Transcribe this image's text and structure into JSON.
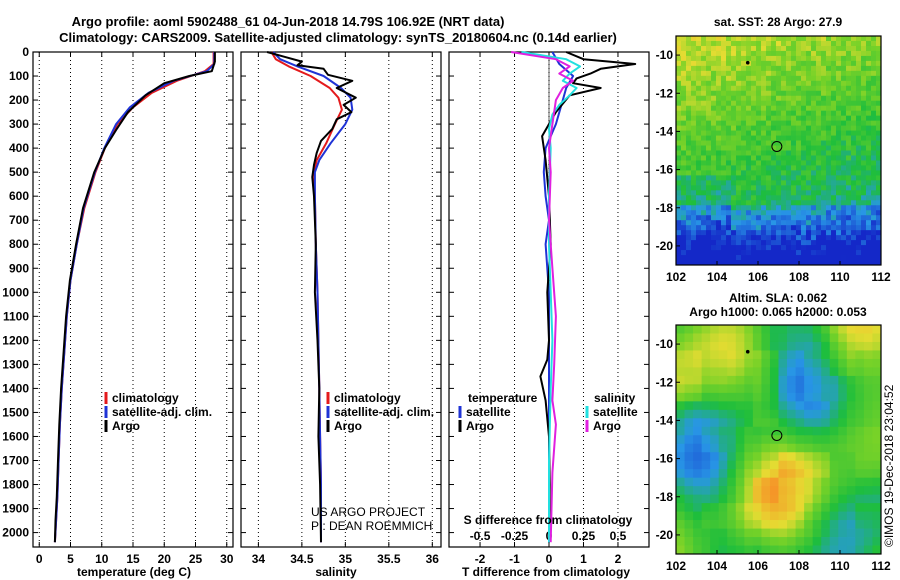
{
  "header": {
    "line1": "Argo profile: aoml 5902488_61 04-Jun-2018 14.79S 106.92E (NRT data)",
    "line2": "Climatology: CARS2009. Satellite-adjusted climatology: synTS_20180604.nc (0.14d earlier)"
  },
  "colors": {
    "climatology": "#e41a1c",
    "satellite": "#1f33d6",
    "argo": "#000000",
    "sat_salinity": "#22e0e0",
    "argo_salinity": "#e020e0"
  },
  "chart_data": [
    {
      "id": "temperature",
      "type": "line",
      "xlabel": "temperature (deg C)",
      "ylabel": "",
      "xlim": [
        -1,
        31
      ],
      "ylim": [
        2060,
        0
      ],
      "xticks": [
        0,
        5,
        10,
        15,
        20,
        25,
        30
      ],
      "yticks": [
        0,
        100,
        200,
        300,
        400,
        500,
        600,
        700,
        800,
        900,
        1000,
        1100,
        1200,
        1300,
        1400,
        1500,
        1600,
        1700,
        1800,
        1900,
        2000
      ],
      "legend": [
        "climatology",
        "satellite-adj. clim.",
        "Argo"
      ],
      "series": [
        {
          "name": "climatology",
          "x": [
            27.9,
            27.9,
            26.5,
            22,
            18,
            15,
            12.5,
            10.5,
            9,
            7.2,
            6,
            5,
            4.4,
            4,
            3.6,
            3.3,
            3.1,
            2.9,
            2.7,
            2.5
          ],
          "y": [
            0,
            50,
            80,
            120,
            170,
            230,
            300,
            400,
            500,
            650,
            800,
            950,
            1100,
            1250,
            1400,
            1550,
            1700,
            1850,
            1950,
            2040
          ]
        },
        {
          "name": "satellite-adj. clim.",
          "x": [
            28,
            28,
            26.8,
            21.5,
            17.5,
            14.5,
            12.3,
            10.4,
            8.9,
            7.1,
            6,
            5,
            4.4,
            4,
            3.6,
            3.3,
            3.1,
            2.9,
            2.7,
            2.5
          ],
          "y": [
            0,
            50,
            80,
            120,
            170,
            230,
            300,
            400,
            500,
            650,
            800,
            950,
            1100,
            1250,
            1400,
            1550,
            1700,
            1850,
            1950,
            2040
          ]
        },
        {
          "name": "Argo",
          "x": [
            28.1,
            28.1,
            27.6,
            24,
            20,
            17,
            14.2,
            12.4,
            10.5,
            8.8,
            7,
            5.9,
            4.9,
            4.3,
            3.9,
            3.5,
            3.2,
            3,
            2.8,
            2.6,
            2.5
          ],
          "y": [
            0,
            40,
            80,
            100,
            130,
            180,
            250,
            320,
            400,
            500,
            650,
            800,
            950,
            1100,
            1250,
            1400,
            1550,
            1700,
            1850,
            1950,
            2040
          ]
        }
      ]
    },
    {
      "id": "salinity",
      "type": "line",
      "xlabel": "salinity",
      "xlim": [
        33.8,
        36.1
      ],
      "ylim": [
        2060,
        0
      ],
      "xticks": [
        34,
        34.5,
        35,
        35.5,
        36
      ],
      "legend": [
        "climatology",
        "satellite-adj. clim.",
        "Argo"
      ],
      "series": [
        {
          "name": "climatology",
          "x": [
            34.15,
            34.2,
            34.35,
            34.6,
            34.82,
            34.92,
            34.96,
            34.88,
            34.78,
            34.67,
            34.64,
            34.65,
            34.66,
            34.68,
            34.69,
            34.7,
            34.71,
            34.72,
            34.72
          ],
          "y": [
            0,
            30,
            60,
            100,
            150,
            190,
            240,
            300,
            380,
            450,
            500,
            600,
            800,
            1000,
            1200,
            1400,
            1600,
            1800,
            2040
          ]
        },
        {
          "name": "satellite-adj. clim.",
          "x": [
            34.17,
            34.25,
            34.45,
            34.75,
            34.95,
            35.06,
            35.08,
            35.0,
            34.83,
            34.7,
            34.65,
            34.65,
            34.66,
            34.68,
            34.69,
            34.7,
            34.71,
            34.72,
            34.72
          ],
          "y": [
            0,
            30,
            60,
            100,
            150,
            190,
            240,
            300,
            380,
            450,
            500,
            600,
            800,
            1000,
            1200,
            1400,
            1600,
            1800,
            2040
          ]
        },
        {
          "name": "Argo",
          "x": [
            34.1,
            34.3,
            34.5,
            34.45,
            34.75,
            34.8,
            35.08,
            34.9,
            35.12,
            34.98,
            35.07,
            34.9,
            34.85,
            34.72,
            34.67,
            34.64,
            34.62,
            34.64,
            34.65,
            34.66,
            34.65,
            34.68,
            34.7,
            34.69,
            34.71,
            34.72
          ],
          "y": [
            0,
            20,
            40,
            55,
            70,
            95,
            120,
            150,
            190,
            220,
            250,
            280,
            320,
            370,
            420,
            470,
            520,
            600,
            700,
            800,
            1000,
            1200,
            1400,
            1600,
            1800,
            2040
          ]
        }
      ]
    },
    {
      "id": "difference",
      "type": "line",
      "xlabel": "T difference from climatology",
      "xlabel_top": "S difference from climatology",
      "xlim": [
        -2.9,
        2.9
      ],
      "ylim": [
        2060,
        0
      ],
      "xticks": [
        -2,
        -1,
        0,
        1,
        2
      ],
      "xticks_top": [
        "-0.5",
        "-0.25",
        "0",
        "0.25",
        "0.5"
      ],
      "xticks_top_pos": [
        -2,
        -1,
        0,
        1,
        2
      ],
      "legend_left_title": "temperature",
      "legend_right_title": "salinity",
      "legend": [
        "satellite",
        "Argo",
        "satellite",
        "Argo"
      ],
      "series": [
        {
          "name": "T satellite",
          "color_key": "satellite",
          "x": [
            0.1,
            0.3,
            0.7,
            0.5,
            0.4,
            0.2,
            -0.1,
            -0.15,
            -0.1,
            0,
            -0.1,
            0,
            0,
            0
          ],
          "y": [
            0,
            50,
            100,
            150,
            200,
            300,
            400,
            500,
            600,
            700,
            800,
            1000,
            1500,
            2040
          ]
        },
        {
          "name": "T Argo",
          "color_key": "argo",
          "x": [
            0.5,
            1,
            2.5,
            1.5,
            1.2,
            0.8,
            0.7,
            1.5,
            0.6,
            0.2,
            -0.2,
            -0.1,
            0,
            0.05,
            -0.05,
            0,
            -0.05,
            -0.25,
            -0.1,
            0,
            0.02,
            0
          ],
          "y": [
            0,
            30,
            50,
            70,
            90,
            110,
            130,
            150,
            180,
            250,
            350,
            450,
            600,
            800,
            1000,
            1200,
            1280,
            1350,
            1450,
            1600,
            1800,
            2040
          ]
        },
        {
          "name": "S satellite",
          "color_key": "sat_salinity",
          "x": [
            -0.8,
            0.5,
            0.9,
            0.6,
            0.4,
            0.8,
            0.6,
            0.3,
            0.1,
            0,
            0.05,
            0,
            0,
            0.05,
            0.1,
            0.05,
            0,
            0
          ],
          "y": [
            0,
            30,
            60,
            90,
            120,
            150,
            180,
            220,
            260,
            320,
            400,
            600,
            800,
            1000,
            1200,
            1400,
            1700,
            2040
          ]
        },
        {
          "name": "S Argo",
          "color_key": "argo_salinity",
          "x": [
            -1.1,
            0.2,
            0.6,
            0.3,
            0.7,
            0.4,
            0.2,
            0.1,
            0,
            0.05,
            0,
            0.1,
            0.2,
            0.15,
            0.1,
            0.2,
            0.1,
            0.05
          ],
          "y": [
            0,
            30,
            60,
            90,
            120,
            150,
            200,
            300,
            400,
            500,
            700,
            900,
            1100,
            1300,
            1450,
            1550,
            1750,
            2040
          ]
        }
      ],
      "annotation_lines": [
        "US ARGO PROJECT",
        "PI: DEAN ROEMMICH"
      ]
    },
    {
      "id": "sst-map",
      "type": "heatmap",
      "title": "sat. SST: 28 Argo: 27.9",
      "xlim": [
        102,
        112
      ],
      "ylim": [
        -21,
        -9
      ],
      "xticks": [
        102,
        104,
        106,
        108,
        110,
        112
      ],
      "yticks": [
        -10,
        -12,
        -14,
        -16,
        -18,
        -20
      ],
      "profile_marker": [
        106.92,
        -14.79
      ],
      "previous_marker": [
        105.5,
        -10.4
      ]
    },
    {
      "id": "sla-map",
      "type": "heatmap",
      "title_line1": "Altim. SLA: 0.062",
      "title_line2": "Argo h1000: 0.065 h2000: 0.053",
      "xlim": [
        102,
        112
      ],
      "ylim": [
        -21,
        -9
      ],
      "xticks": [
        102,
        104,
        106,
        108,
        110,
        112
      ],
      "yticks": [
        -10,
        -12,
        -14,
        -16,
        -18,
        -20
      ],
      "profile_marker": [
        106.92,
        -14.79
      ],
      "previous_marker": [
        105.5,
        -10.4
      ]
    }
  ],
  "legend_labels": {
    "climatology": "climatology",
    "satellite_adj": "satellite-adj. clim.",
    "argo": "Argo",
    "temperature": "temperature",
    "salinity": "salinity",
    "satellite": "satellite"
  },
  "credit": "©IMOS 19-Dec-2018 23:04:52"
}
